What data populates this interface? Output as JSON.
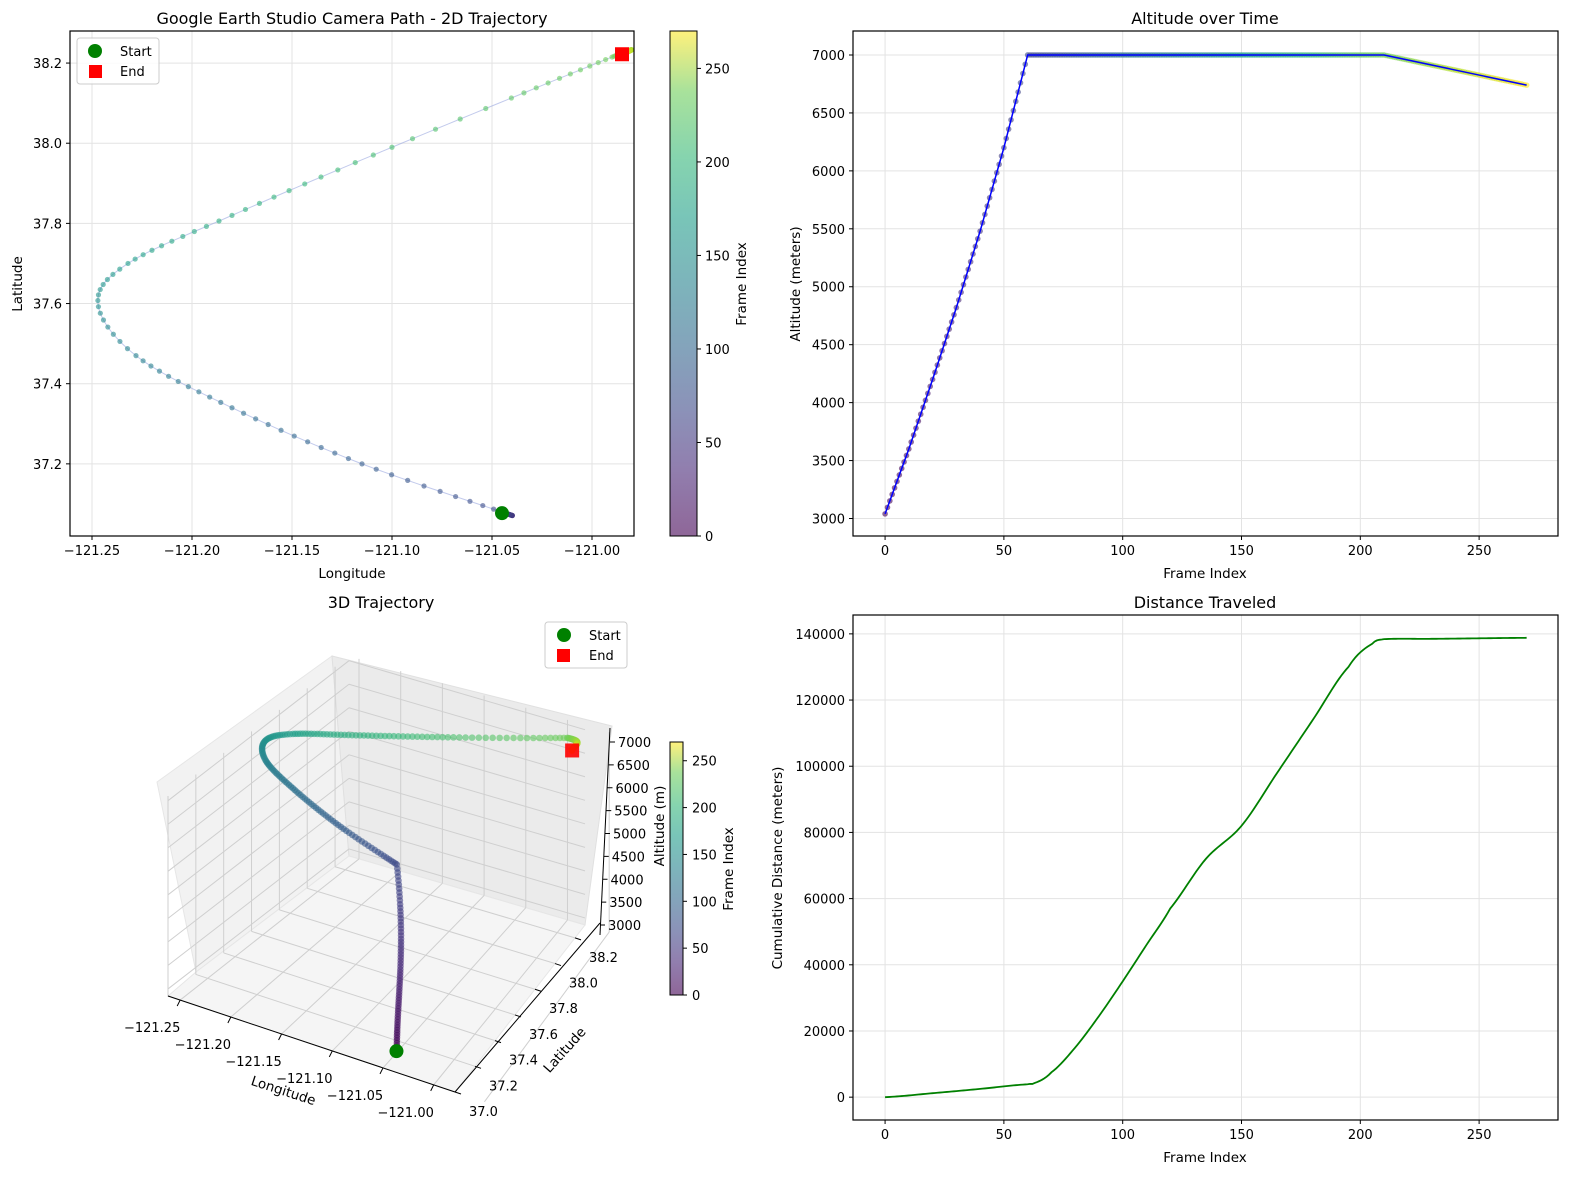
{
  "chart_data": [
    {
      "id": "traj2d",
      "type": "scatter",
      "title": "Google Earth Studio Camera Path - 2D Trajectory",
      "xlabel": "Longitude",
      "ylabel": "Latitude",
      "xlim": [
        -121.261,
        -120.979
      ],
      "ylim": [
        37.02,
        38.28
      ],
      "xticks": [
        -121.25,
        -121.2,
        -121.15,
        -121.1,
        -121.05,
        -121.0
      ],
      "xtick_labels": [
        "−121.25",
        "−121.20",
        "−121.15",
        "−121.10",
        "−121.05",
        "−121.00"
      ],
      "yticks": [
        37.2,
        37.4,
        37.6,
        37.8,
        38.0,
        38.2
      ],
      "ytick_labels": [
        "37.2",
        "37.4",
        "37.6",
        "37.8",
        "38.0",
        "38.2"
      ],
      "grid": true,
      "frames": 271,
      "path_points": [
        {
          "frame": 0,
          "lon": -121.045,
          "lat": 37.08
        },
        {
          "frame": 60,
          "lon": -121.045,
          "lat": 37.08
        },
        {
          "frame": 80,
          "lon": -121.115,
          "lat": 37.2
        },
        {
          "frame": 100,
          "lon": -121.18,
          "lat": 37.34
        },
        {
          "frame": 120,
          "lon": -121.228,
          "lat": 37.47
        },
        {
          "frame": 135,
          "lon": -121.247,
          "lat": 37.6
        },
        {
          "frame": 150,
          "lon": -121.232,
          "lat": 37.7
        },
        {
          "frame": 170,
          "lon": -121.18,
          "lat": 37.82
        },
        {
          "frame": 190,
          "lon": -121.1,
          "lat": 37.99
        },
        {
          "frame": 210,
          "lon": -120.99,
          "lat": 38.215
        },
        {
          "frame": 270,
          "lon": -120.985,
          "lat": 38.22
        }
      ],
      "markers": [
        {
          "name": "Start",
          "lon": -121.045,
          "lat": 37.077,
          "color": "#008000",
          "shape": "circle"
        },
        {
          "name": "End",
          "lon": -120.985,
          "lat": 38.222,
          "color": "#ff0000",
          "shape": "square"
        }
      ],
      "legend": {
        "position": "top-left",
        "entries": [
          "Start",
          "End"
        ]
      },
      "colorbar": {
        "label": "Frame Index",
        "range": [
          0,
          270
        ],
        "ticks": [
          0,
          50,
          100,
          150,
          200,
          250
        ],
        "colormap": "viridis",
        "alpha": 0.6
      }
    },
    {
      "id": "altitude",
      "type": "line",
      "title": "Altitude over Time",
      "xlabel": "Frame Index",
      "ylabel": "Altitude (meters)",
      "xlim": [
        -13.5,
        283.2
      ],
      "ylim": [
        2849,
        7207
      ],
      "xticks": [
        0,
        50,
        100,
        150,
        200,
        250
      ],
      "yticks": [
        3000,
        3500,
        4000,
        4500,
        5000,
        5500,
        6000,
        6500,
        7000
      ],
      "grid": true,
      "series": [
        {
          "name": "altitude",
          "color": "#0000ff",
          "x": [
            0,
            10,
            20,
            30,
            40,
            50,
            60,
            210,
            270
          ],
          "y": [
            3040,
            3600,
            4200,
            4820,
            5480,
            6200,
            7000,
            7000,
            6740
          ]
        }
      ]
    },
    {
      "id": "traj3d",
      "type": "scatter",
      "title": "3D Trajectory",
      "xlabel": "Longitude",
      "ylabel": "Latitude",
      "zlabel": "Altitude (m)",
      "xtick_labels": [
        "−121.25",
        "−121.20",
        "−121.15",
        "−121.10",
        "−121.05",
        "−121.00"
      ],
      "ytick_labels": [
        "37.0",
        "37.2",
        "37.4",
        "37.6",
        "37.8",
        "38.0",
        "38.2"
      ],
      "ztick_labels": [
        "3000",
        "3500",
        "4000",
        "4500",
        "5000",
        "5500",
        "6000",
        "6500",
        "7000"
      ],
      "legend": {
        "position": "top-right",
        "entries": [
          "Start",
          "End"
        ]
      },
      "colorbar": {
        "label": "Frame Index",
        "range": [
          0,
          270
        ],
        "ticks": [
          0,
          50,
          100,
          150,
          200,
          250
        ],
        "colormap": "viridis",
        "alpha": 0.6
      }
    },
    {
      "id": "distance",
      "type": "line",
      "title": "Distance Traveled",
      "xlabel": "Frame Index",
      "ylabel": "Cumulative Distance (meters)",
      "xlim": [
        -13.5,
        283.2
      ],
      "ylim": [
        -6900,
        145700
      ],
      "xticks": [
        0,
        50,
        100,
        150,
        200,
        250
      ],
      "yticks": [
        0,
        20000,
        40000,
        60000,
        80000,
        100000,
        120000,
        140000
      ],
      "grid": true,
      "series": [
        {
          "name": "cumulative distance",
          "color": "#008000",
          "x": [
            0,
            20,
            40,
            60,
            63,
            70,
            80,
            90,
            100,
            110,
            120,
            135,
            150,
            165,
            180,
            195,
            205,
            210,
            230,
            270
          ],
          "y": [
            0,
            1200,
            2500,
            3900,
            4300,
            7500,
            15000,
            24500,
            35000,
            46000,
            57000,
            72000,
            82000,
            98000,
            114000,
            130000,
            137000,
            138400,
            138500,
            138800
          ]
        }
      ]
    }
  ]
}
